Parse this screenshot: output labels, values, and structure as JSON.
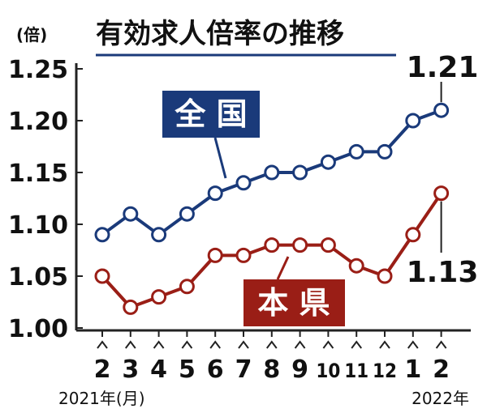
{
  "chart_data": {
    "type": "line",
    "title": "有効求人倍率の推移",
    "unit_label": "(倍)",
    "categories": [
      "2",
      "3",
      "4",
      "5",
      "6",
      "7",
      "8",
      "9",
      "10",
      "11",
      "12",
      "1",
      "2"
    ],
    "ylim": [
      1.0,
      1.25
    ],
    "yticks": [
      "1.00",
      "1.05",
      "1.10",
      "1.15",
      "1.20",
      "1.25"
    ],
    "year_start_label": "2021年(月)",
    "year_end_label": "2022年",
    "series": [
      {
        "name": "全 国",
        "color": "#1a3a7a",
        "values": [
          1.09,
          1.11,
          1.09,
          1.11,
          1.13,
          1.14,
          1.15,
          1.15,
          1.16,
          1.17,
          1.17,
          1.2,
          1.21
        ],
        "end_label": "1.21"
      },
      {
        "name": "本 県",
        "color": "#9a1e16",
        "values": [
          1.05,
          1.02,
          1.03,
          1.04,
          1.07,
          1.07,
          1.08,
          1.08,
          1.08,
          1.06,
          1.05,
          1.09,
          1.13
        ],
        "end_label": "1.13"
      }
    ]
  }
}
